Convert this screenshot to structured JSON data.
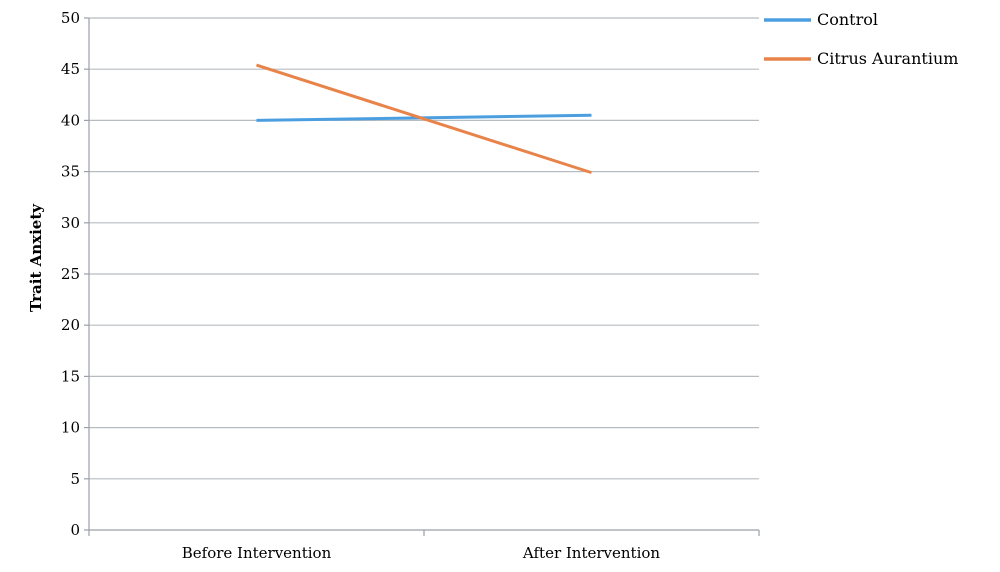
{
  "chart_data": {
    "type": "line",
    "categories": [
      "Before Intervention",
      "After Intervention"
    ],
    "series": [
      {
        "name": "Control",
        "values": [
          40.0,
          40.5
        ],
        "color": "#4b9fe1"
      },
      {
        "name": "Citrus Aurantium",
        "values": [
          45.4,
          34.9
        ],
        "color": "#e8834a"
      }
    ],
    "ylabel": "Trait Anxiety",
    "xlabel": "",
    "ylim": [
      0,
      50
    ],
    "yticks": [
      0,
      5,
      10,
      15,
      20,
      25,
      30,
      35,
      40,
      45,
      50
    ],
    "grid": true,
    "legend_position": "top-right"
  }
}
